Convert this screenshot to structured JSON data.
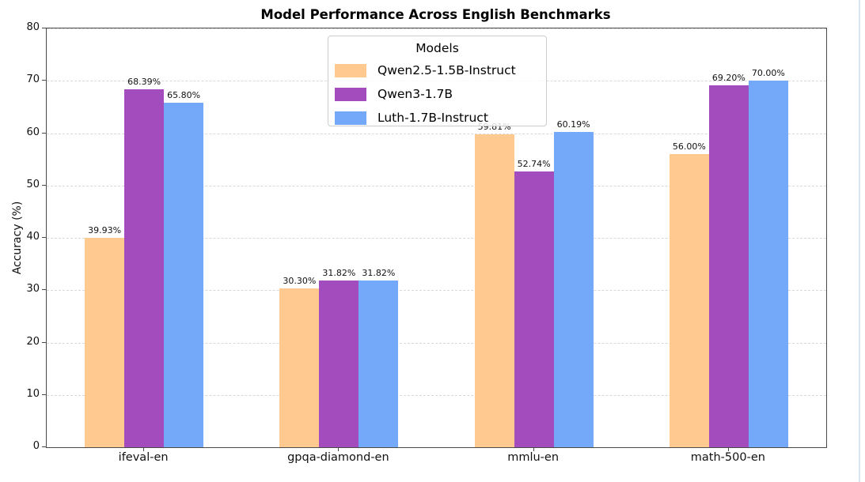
{
  "figure": {
    "title": "Model Performance Across English Benchmarks"
  },
  "chart_data": {
    "type": "bar",
    "title": "Model Performance Across English Benchmarks",
    "xlabel": "",
    "ylabel": "Accuracy (%)",
    "ylim": [
      0,
      80
    ],
    "ytick_step": 10,
    "grid": "horizontal dashed gridlines",
    "legend": {
      "title": "Models",
      "position": "upper center-left inside plot"
    },
    "categories": [
      "ifeval-en",
      "gpqa-diamond-en",
      "mmlu-en",
      "math-500-en"
    ],
    "series": [
      {
        "name": "Qwen2.5-1.5B-Instruct",
        "color": "#FFC98F",
        "values": [
          39.93,
          30.3,
          59.81,
          56.0
        ],
        "labels": [
          "39.93%",
          "30.30%",
          "59.81%",
          "56.00%"
        ]
      },
      {
        "name": "Qwen3-1.7B",
        "color": "#A24CBE",
        "values": [
          68.39,
          31.82,
          52.74,
          69.2
        ],
        "labels": [
          "68.39%",
          "31.82%",
          "52.74%",
          "69.20%"
        ]
      },
      {
        "name": "Luth-1.7B-Instruct",
        "color": "#74A8F9",
        "values": [
          65.8,
          31.82,
          60.19,
          70.0
        ],
        "labels": [
          "65.80%",
          "31.82%",
          "60.19%",
          "70.00%"
        ]
      }
    ],
    "axis_colors": {
      "spine": "#4a4a4a",
      "gridline": "#d8d8d8",
      "text": "#111111"
    }
  }
}
